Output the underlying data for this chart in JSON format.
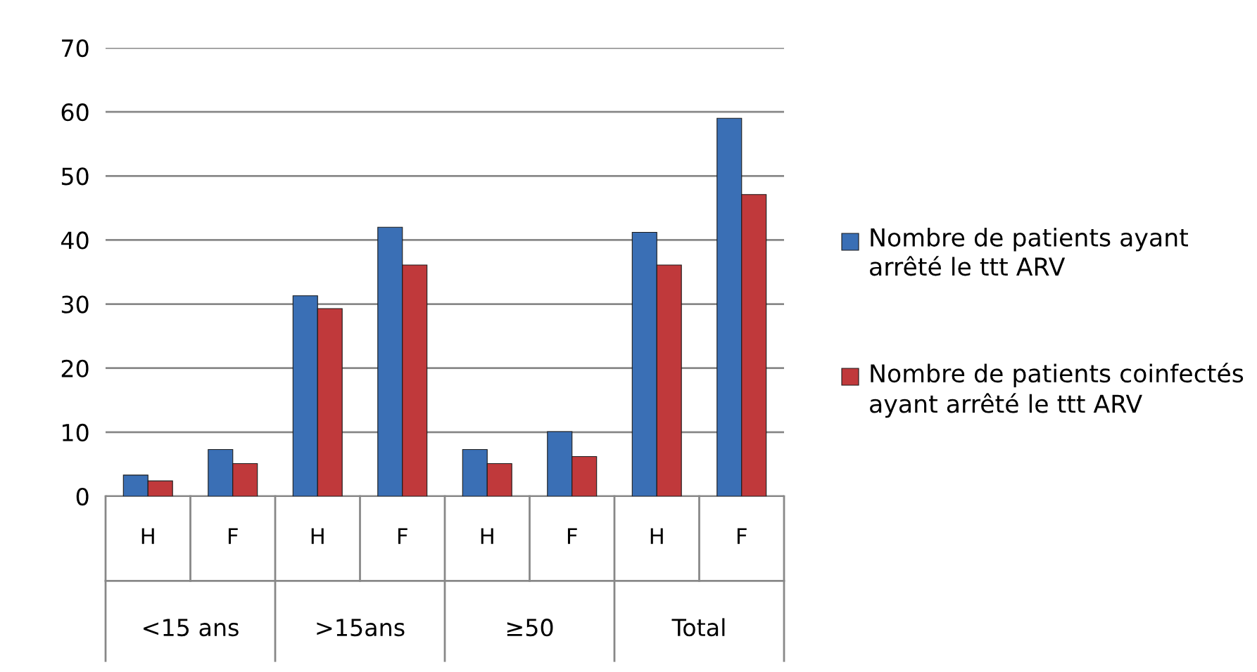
{
  "chart_data": {
    "type": "bar",
    "categories": [
      "H",
      "F",
      "H",
      "F",
      "H",
      "F",
      "H",
      "F"
    ],
    "series": [
      {
        "name": "Nombre de patients ayant arrêté le ttt ARV",
        "color": "#3a6fb5",
        "values": [
          3.3,
          7.3,
          31.3,
          42.0,
          7.3,
          10.1,
          41.2,
          59.0
        ]
      },
      {
        "name": "Nombre de patients coinfectés  ayant arrêté le ttt ARV",
        "color": "#c0393b",
        "values": [
          2.4,
          5.1,
          29.3,
          36.1,
          5.1,
          6.2,
          36.1,
          47.1
        ]
      }
    ],
    "annotations": [
      "<15 ans",
      ">15ans",
      "≥50",
      "Total"
    ],
    "ylim": [
      0,
      70
    ],
    "yticks": [
      0,
      10,
      20,
      30,
      40,
      50,
      60,
      70
    ],
    "grid": "y",
    "legend": "right"
  }
}
